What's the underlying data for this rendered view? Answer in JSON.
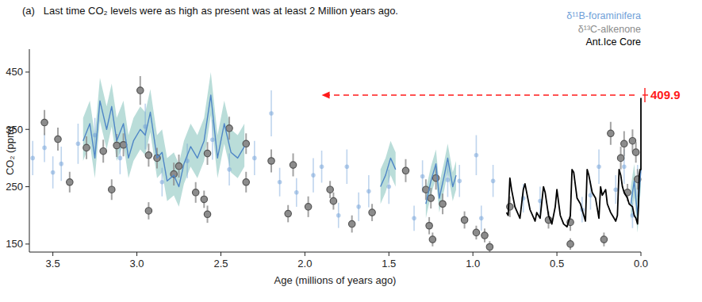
{
  "chart_data": {
    "type": "scatter",
    "title": "(a)   Last time CO₂ levels were as high as present was at least 2 Million years ago.",
    "x_label": "Age (millions of years ago)",
    "y_label": "CO₂ (ppm)",
    "xlim": [
      3.64,
      0
    ],
    "ylim": [
      136,
      490
    ],
    "xticks": [
      3.5,
      {
        "value": 3,
        "label": "3.0"
      },
      2.5,
      {
        "value": 2,
        "label": "2.0"
      },
      1.5,
      {
        "value": 1,
        "label": "1.0"
      },
      0.5,
      {
        "value": 0,
        "label": "0.0"
      }
    ],
    "yticks": [
      150,
      250,
      350,
      450
    ],
    "grid": false,
    "legend": "upper right",
    "series": [
      {
        "name": "δ¹¹B-foraminifera",
        "type": "scatter",
        "color": "#6f9fd8",
        "marker": "circle",
        "x": [
          3.62,
          3.55,
          3.5,
          3.45,
          3.35,
          3.25,
          3.1,
          2.95,
          2.85,
          2.7,
          2.55,
          2.45,
          2.3,
          2.2,
          2.15,
          2.05,
          1.95,
          1.9,
          1.8,
          1.75,
          1.68,
          1.62,
          1.5,
          1.35,
          1.3,
          1.15,
          1.08,
          0.98,
          0.95,
          0.88,
          0.7,
          0.6,
          0.35,
          0.3,
          0.25,
          0.15,
          0.1,
          0.05,
          0.02
        ],
        "values": [
          300,
          318,
          275,
          290,
          325,
          340,
          300,
          355,
          258,
          295,
          332,
          280,
          300,
          378,
          258,
          240,
          270,
          285,
          200,
          285,
          215,
          242,
          250,
          195,
          268,
          262,
          260,
          305,
          195,
          260,
          230,
          225,
          210,
          235,
          285,
          245,
          285,
          200,
          260
        ],
        "errors": [
          30,
          25,
          28,
          30,
          35,
          30,
          28,
          40,
          25,
          30,
          35,
          28,
          30,
          40,
          25,
          25,
          30,
          28,
          22,
          30,
          25,
          28,
          30,
          22,
          28,
          30,
          28,
          35,
          22,
          28,
          25,
          25,
          22,
          25,
          30,
          25,
          30,
          22,
          28
        ]
      },
      {
        "type": "line",
        "color": "#4f86c6",
        "line_style": "solid",
        "x": [
          3.32,
          3.28,
          3.25,
          3.22,
          3.18,
          3.15,
          3.12,
          3.08,
          3.05,
          3.02,
          2.98,
          2.95,
          2.92,
          2.88,
          2.85,
          2.82,
          2.78,
          2.75,
          2.72,
          2.68,
          2.64,
          2.6,
          2.56,
          2.52,
          2.48,
          2.44,
          2.4,
          2.36,
          null,
          1.55,
          1.52,
          1.49,
          1.46,
          null,
          1.28,
          1.25,
          1.22,
          1.2,
          1.17,
          1.15,
          1.12,
          1.1,
          null,
          0.06,
          0.04,
          0.02,
          0
        ],
        "values": [
          330,
          360,
          300,
          400,
          350,
          390,
          330,
          360,
          300,
          330,
          350,
          340,
          380,
          300,
          310,
          260,
          270,
          250,
          290,
          320,
          300,
          330,
          410,
          300,
          360,
          310,
          300,
          320,
          null,
          250,
          270,
          300,
          280,
          null,
          220,
          260,
          290,
          230,
          270,
          300,
          250,
          270,
          null,
          220,
          260,
          200,
          280
        ],
        "lower": [
          295,
          325,
          265,
          365,
          315,
          355,
          295,
          325,
          265,
          295,
          315,
          305,
          345,
          265,
          275,
          225,
          235,
          215,
          255,
          285,
          265,
          295,
          375,
          265,
          325,
          275,
          265,
          285,
          null,
          220,
          240,
          270,
          250,
          null,
          195,
          235,
          265,
          205,
          245,
          275,
          225,
          245,
          null,
          190,
          230,
          170,
          250
        ],
        "upper": [
          370,
          400,
          340,
          440,
          390,
          430,
          370,
          400,
          340,
          370,
          390,
          380,
          420,
          340,
          350,
          300,
          310,
          290,
          330,
          360,
          340,
          370,
          450,
          340,
          400,
          350,
          340,
          360,
          null,
          280,
          300,
          330,
          310,
          null,
          245,
          285,
          315,
          255,
          295,
          325,
          275,
          295,
          null,
          250,
          290,
          230,
          310
        ]
      },
      {
        "name": "δ¹³C-alkenone",
        "type": "scatter",
        "color": "#8c8c8c",
        "marker": "circle",
        "x": [
          3.55,
          3.47,
          3.4,
          3.3,
          3.2,
          3.15,
          3.12,
          3.08,
          2.98,
          2.93,
          2.93,
          2.88,
          2.78,
          2.75,
          2.65,
          2.6,
          2.58,
          2.58,
          2.45,
          2.35,
          2.35,
          2.2,
          2.1,
          2.07,
          1.98,
          1.85,
          1.83,
          1.72,
          1.6,
          1.4,
          1.28,
          1.26,
          1.24,
          1.25,
          1.22,
          1.18,
          1.05,
          0.98,
          0.93,
          0.9,
          0.78,
          0.55,
          0.42,
          0.42,
          0.22,
          0.18,
          0.12,
          0.1,
          0.05,
          0.03,
          0.02,
          0.08
        ],
        "values": [
          362,
          333,
          258,
          318,
          312,
          245,
          322,
          323,
          418,
          208,
          305,
          300,
          272,
          286,
          240,
          228,
          308,
          202,
          352,
          325,
          258,
          295,
          203,
          288,
          215,
          245,
          225,
          185,
          205,
          278,
          245,
          182,
          158,
          230,
          265,
          220,
          192,
          170,
          165,
          145,
          215,
          192,
          188,
          150,
          158,
          343,
          300,
          325,
          330,
          310,
          263,
          240
        ],
        "errors": [
          22,
          20,
          18,
          20,
          20,
          18,
          20,
          20,
          25,
          15,
          20,
          18,
          20,
          20,
          18,
          15,
          20,
          15,
          20,
          18,
          18,
          20,
          15,
          20,
          18,
          15,
          15,
          15,
          15,
          20,
          18,
          15,
          12,
          18,
          20,
          18,
          15,
          12,
          12,
          10,
          18,
          15,
          15,
          10,
          12,
          20,
          20,
          22,
          20,
          18,
          18,
          15
        ]
      },
      {
        "name": "Ant.Ice Core",
        "type": "line",
        "color": "#000000",
        "line_style": "solid",
        "x": [
          0.8,
          0.79,
          0.78,
          0.77,
          0.75,
          0.72,
          0.7,
          0.69,
          0.66,
          0.63,
          0.62,
          0.6,
          0.58,
          0.57,
          0.55,
          0.53,
          0.51,
          0.5,
          0.48,
          0.46,
          0.44,
          0.42,
          0.41,
          0.4,
          0.38,
          0.36,
          0.34,
          0.33,
          0.32,
          0.31,
          0.29,
          0.27,
          0.25,
          0.24,
          0.23,
          0.21,
          0.2,
          0.18,
          0.16,
          0.15,
          0.14,
          0.13,
          0.12,
          0.11,
          0.1,
          0.08,
          0.07,
          0.05,
          0.04,
          0.03,
          0.02,
          0.015,
          0.01,
          0.005,
          0,
          0
        ],
        "values": [
          205,
          200,
          265,
          245,
          215,
          195,
          245,
          255,
          210,
          190,
          205,
          195,
          250,
          240,
          200,
          185,
          215,
          245,
          200,
          185,
          180,
          200,
          280,
          275,
          230,
          220,
          200,
          190,
          280,
          270,
          240,
          230,
          195,
          250,
          235,
          245,
          220,
          205,
          195,
          190,
          200,
          280,
          270,
          250,
          240,
          230,
          220,
          215,
          200,
          195,
          185,
          215,
          270,
          280,
          280,
          405
        ]
      }
    ],
    "annotations": [
      {
        "text": "409.9",
        "value": 409.9,
        "x": 0,
        "x_end": 1.9,
        "color": "#ff1a1a",
        "line_style": "dashed"
      }
    ]
  }
}
